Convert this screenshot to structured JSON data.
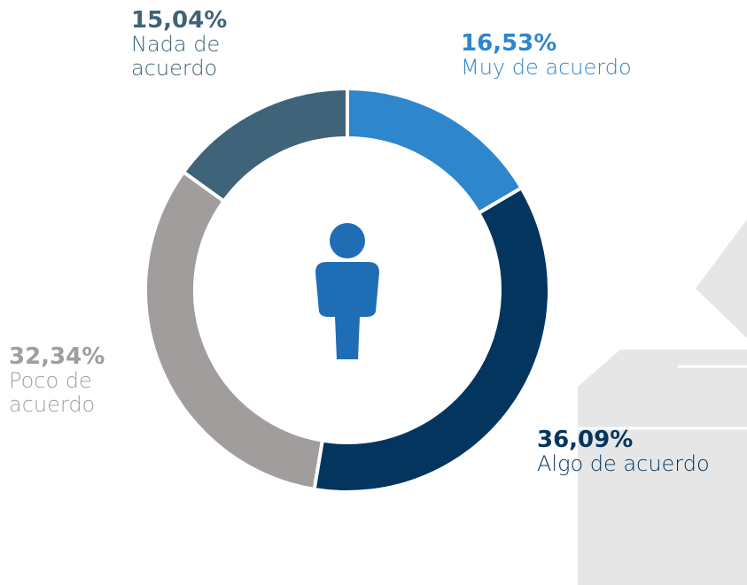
{
  "chart_data": {
    "type": "donut",
    "categories": [
      "Muy de acuerdo",
      "Algo de acuerdo",
      "Poco de acuerdo",
      "Nada de acuerdo"
    ],
    "values": [
      16.53,
      36.09,
      32.34,
      15.04
    ],
    "value_labels": [
      "16,53%",
      "36,09%",
      "32,34%",
      "15,04%"
    ],
    "colors": [
      "#2e86cd",
      "#03355f",
      "#a09d9c",
      "#3f6379"
    ]
  }
}
